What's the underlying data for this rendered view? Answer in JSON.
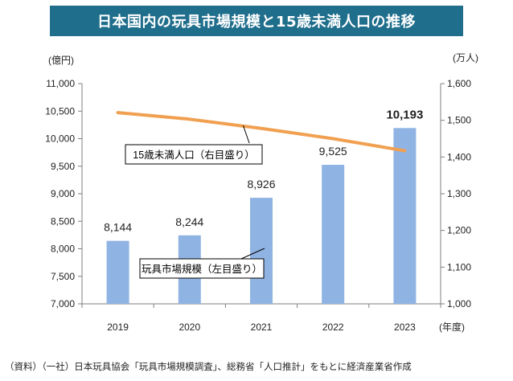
{
  "title": "日本国内の玩具市場規模と15歳未満人口の推移",
  "source_note": "（資料）（一社）日本玩具協会「玩具市場規模調査」、総務省「人口推計」をもとに経済産業省作成",
  "colors": {
    "banner": "#1f6e8c",
    "bar": "#8fb4e3",
    "line": "#f0a050"
  },
  "chart_data": {
    "type": "bar+line",
    "categories": [
      "2019",
      "2020",
      "2021",
      "2022",
      "2023"
    ],
    "x_unit": "(年度)",
    "left_axis": {
      "unit": "(億円)",
      "ylim": [
        7000,
        11000
      ],
      "ticks": [
        "7,000",
        "7,500",
        "8,000",
        "8,500",
        "9,000",
        "9,500",
        "10,000",
        "10,500",
        "11,000"
      ]
    },
    "right_axis": {
      "unit": "(万人)",
      "ylim": [
        1000,
        1600
      ],
      "ticks": [
        "1,000",
        "1,100",
        "1,200",
        "1,300",
        "1,400",
        "1,500",
        "1,600"
      ]
    },
    "series": [
      {
        "name": "玩具市場規模（左目盛り）",
        "type": "bar",
        "axis": "left",
        "values": [
          8144,
          8244,
          8926,
          9525,
          10193
        ],
        "labels": [
          "8,144",
          "8,244",
          "8,926",
          "9,525",
          "10,193"
        ]
      },
      {
        "name": "15歳未満人口（右目盛り）",
        "type": "line",
        "axis": "right",
        "values": [
          1521,
          1503,
          1478,
          1450,
          1417
        ]
      }
    ],
    "grid": false
  }
}
